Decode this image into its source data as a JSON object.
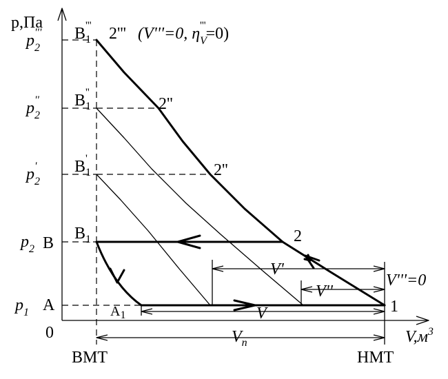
{
  "axes": {
    "y_label": "p,Па",
    "x_label": {
      "base": "V,м",
      "sup": "3"
    },
    "origin": "0"
  },
  "pressure_labels": [
    {
      "base": "p",
      "sub": "2",
      "sup": "'''"
    },
    {
      "base": "p",
      "sub": "2",
      "sup": "''"
    },
    {
      "base": "p",
      "sub": "2",
      "sup": "'"
    },
    {
      "base": "p",
      "sub": "2"
    },
    {
      "base": "p",
      "sub": "1"
    }
  ],
  "points": {
    "b1_3": {
      "base": "B",
      "sub": "1",
      "sup": "'''"
    },
    "b1_2": {
      "base": "B",
      "sub": "1",
      "sup": "''"
    },
    "b1_1": {
      "base": "B",
      "sub": "1",
      "sup": "'"
    },
    "b1": {
      "base": "B",
      "sub": "1"
    },
    "b": "B",
    "a": "A",
    "a1": {
      "base": "A",
      "sub": "1"
    },
    "p2_3": "2'''",
    "p2_2": "2''",
    "p2_1": "2''",
    "p2": "2",
    "p1": "1"
  },
  "annotation": {
    "text1": "(V'''=0, η",
    "sub": "V",
    "sup": "'''",
    "text2": "=0)"
  },
  "volumes": {
    "v1": "V'",
    "v2": "V''",
    "v3": "V'''=0",
    "v": "V",
    "vn": {
      "base": "V",
      "sub": "n"
    }
  },
  "dead_points": {
    "top": "ВМТ",
    "bottom": "НМТ"
  }
}
